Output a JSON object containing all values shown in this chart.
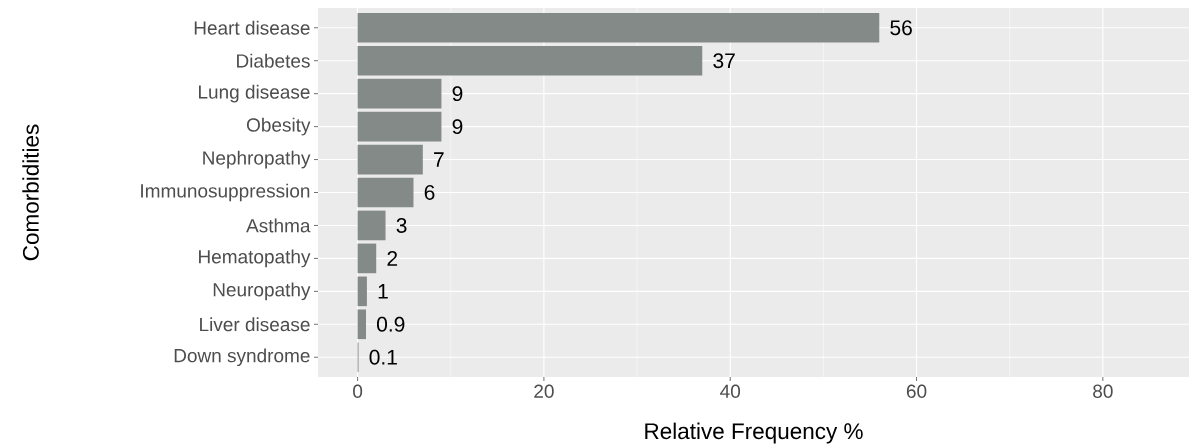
{
  "chart_data": {
    "type": "bar",
    "orientation": "horizontal",
    "xlabel": "Relative Frequency %",
    "ylabel": "Comorbidities",
    "categories": [
      "Heart disease",
      "Diabetes",
      "Lung disease",
      "Obesity",
      "Nephropathy",
      "Immunosuppression",
      "Asthma",
      "Hematopathy",
      "Neuropathy",
      "Liver disease",
      "Down syndrome"
    ],
    "values": [
      56,
      37,
      9,
      9,
      7,
      6,
      3,
      2,
      1,
      0.9,
      0.1
    ],
    "value_labels": [
      "56",
      "37",
      "9",
      "9",
      "7",
      "6",
      "3",
      "2",
      "1",
      "0.9",
      "0.1"
    ],
    "color": "#848a88",
    "xlim": [
      -4.25,
      89.25
    ],
    "xticks": [
      0,
      20,
      40,
      60,
      80
    ],
    "grid": true
  }
}
